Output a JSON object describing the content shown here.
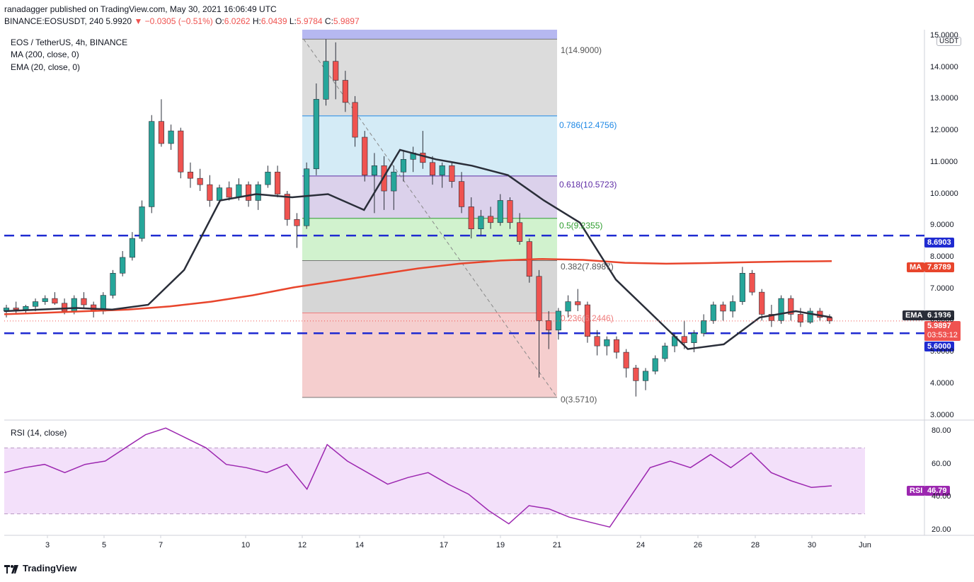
{
  "header": {
    "line1": "ranadagger published on TradingView.com, May 30, 2021 16:06:49 UTC",
    "symbol": "BINANCE:EOSUSDT, 240",
    "price": "5.9920",
    "change": "−0.0305 (−0.51%)",
    "o_label": "O:",
    "o": "6.0262",
    "h_label": "H:",
    "h": "6.0439",
    "l_label": "L:",
    "l": "5.9784",
    "c_label": "C:",
    "c": "5.9897"
  },
  "legend": {
    "pair": "EOS / TetherUS, 4h, BINANCE",
    "ma": "MA (200, close, 0)",
    "ema": "EMA (20, close, 0)",
    "rsi": "RSI (14, close)"
  },
  "currency_button": "USDT",
  "brand": "TradingView",
  "price_tags": {
    "level_high": "8.6903",
    "ma_label": "MA",
    "ma_value": "7.8789",
    "ema_label": "EMA",
    "ema_value": "6.1936",
    "last_price": "5.9897",
    "countdown": "03:53:12",
    "level_low": "5.6000",
    "rsi_label": "RSI",
    "rsi_value": "46.79"
  },
  "fib_labels": {
    "f1": "1(14.9000)",
    "f786": "0.786(12.4756)",
    "f618": "0.618(10.5723)",
    "f5": "0.5(9.2355)",
    "f382": "0.382(7.8987)",
    "f236": "0.236(6.2446)",
    "f0": "0(3.5710)"
  },
  "colors": {
    "up": "#26a69a",
    "down": "#ef5350",
    "ma": "#e8452c",
    "ema": "#2a2e39",
    "level": "#1f2bd1",
    "rsi_line": "#9c27b0",
    "rsi_band": "#f3e0fa"
  },
  "chart_data": {
    "type": "candlestick",
    "x_ticks": [
      "3",
      "5",
      "7",
      "10",
      "12",
      "14",
      "17",
      "19",
      "21",
      "24",
      "26",
      "28",
      "30",
      "Jun"
    ],
    "y_ticks": [
      "3.0000",
      "4.0000",
      "5.0000",
      "6.0000",
      "7.0000",
      "8.0000",
      "9.0000",
      "10.0000",
      "11.0000",
      "12.0000",
      "13.0000",
      "14.0000",
      "15.0000"
    ],
    "rsi_ticks": [
      "20.00",
      "40.00",
      "60.00",
      "80.00"
    ],
    "ylim": [
      2.9,
      15.2
    ],
    "rsi_lim": [
      17,
      86
    ],
    "rsi_bands": [
      30,
      70
    ],
    "horizontal_levels": [
      8.6903,
      5.6
    ],
    "fibonacci": {
      "high": 14.9,
      "low": 3.571,
      "levels": [
        1,
        0.786,
        0.618,
        0.5,
        0.382,
        0.236,
        0
      ]
    },
    "ma_points": [
      6.2,
      6.25,
      6.3,
      6.35,
      6.45,
      6.6,
      6.8,
      7.05,
      7.25,
      7.45,
      7.65,
      7.8,
      7.9,
      7.95,
      7.92,
      7.83,
      7.8,
      7.82,
      7.85,
      7.87,
      7.88
    ],
    "ema_points": [
      6.3,
      6.35,
      6.4,
      6.35,
      6.5,
      7.6,
      9.8,
      10.0,
      9.9,
      10.0,
      9.5,
      11.4,
      11.1,
      10.9,
      10.6,
      9.8,
      9.1,
      7.3,
      6.2,
      5.1,
      5.25,
      6.1,
      6.3,
      6.1
    ],
    "rsi_points": [
      55,
      58,
      60,
      55,
      60,
      62,
      70,
      78,
      82,
      76,
      70,
      60,
      58,
      55,
      60,
      45,
      72,
      62,
      55,
      48,
      52,
      55,
      48,
      42,
      32,
      24,
      35,
      33,
      28,
      25,
      22,
      40,
      58,
      62,
      58,
      66,
      58,
      67,
      55,
      50,
      46,
      47
    ],
    "candles": [
      [
        6.3,
        6.5,
        6.1,
        6.4
      ],
      [
        6.4,
        6.6,
        6.2,
        6.35
      ],
      [
        6.35,
        6.5,
        6.2,
        6.45
      ],
      [
        6.45,
        6.7,
        6.3,
        6.6
      ],
      [
        6.6,
        6.8,
        6.5,
        6.7
      ],
      [
        6.7,
        6.9,
        6.5,
        6.55
      ],
      [
        6.55,
        6.7,
        6.2,
        6.3
      ],
      [
        6.3,
        6.8,
        6.2,
        6.7
      ],
      [
        6.7,
        6.9,
        6.4,
        6.5
      ],
      [
        6.5,
        6.6,
        6.1,
        6.3
      ],
      [
        6.3,
        6.9,
        6.2,
        6.8
      ],
      [
        6.8,
        7.6,
        6.7,
        7.5
      ],
      [
        7.5,
        8.2,
        7.4,
        8.0
      ],
      [
        8.0,
        8.8,
        7.9,
        8.6
      ],
      [
        8.6,
        9.8,
        8.5,
        9.6
      ],
      [
        9.6,
        12.5,
        9.4,
        12.3
      ],
      [
        12.3,
        13.0,
        11.5,
        11.6
      ],
      [
        11.6,
        12.2,
        11.4,
        12.0
      ],
      [
        12.0,
        12.1,
        10.5,
        10.7
      ],
      [
        10.7,
        11.0,
        10.2,
        10.5
      ],
      [
        10.5,
        10.8,
        10.1,
        10.3
      ],
      [
        10.3,
        10.6,
        9.6,
        9.8
      ],
      [
        9.8,
        10.3,
        9.7,
        10.2
      ],
      [
        10.2,
        10.4,
        9.8,
        9.9
      ],
      [
        9.9,
        10.5,
        9.8,
        10.3
      ],
      [
        10.3,
        10.4,
        9.6,
        9.8
      ],
      [
        9.8,
        10.4,
        9.5,
        10.3
      ],
      [
        10.3,
        10.9,
        10.2,
        10.7
      ],
      [
        10.7,
        10.9,
        9.9,
        10.0
      ],
      [
        10.0,
        10.1,
        9.0,
        9.2
      ],
      [
        9.2,
        9.4,
        8.3,
        9.0
      ],
      [
        9.0,
        11.0,
        8.9,
        10.8
      ],
      [
        10.8,
        13.5,
        10.6,
        13.0
      ],
      [
        13.0,
        14.9,
        12.8,
        14.2
      ],
      [
        14.2,
        14.8,
        13.0,
        13.6
      ],
      [
        13.6,
        13.9,
        12.6,
        12.9
      ],
      [
        12.9,
        13.1,
        11.5,
        11.8
      ],
      [
        11.8,
        12.0,
        10.4,
        10.6
      ],
      [
        10.6,
        11.3,
        9.4,
        10.9
      ],
      [
        10.9,
        11.2,
        9.5,
        10.1
      ],
      [
        10.1,
        10.9,
        9.5,
        10.7
      ],
      [
        10.7,
        11.4,
        10.4,
        11.1
      ],
      [
        11.1,
        11.5,
        10.7,
        11.3
      ],
      [
        11.3,
        12.0,
        10.8,
        11.0
      ],
      [
        11.0,
        11.2,
        10.3,
        10.6
      ],
      [
        10.6,
        11.0,
        10.2,
        10.9
      ],
      [
        10.9,
        11.0,
        10.2,
        10.4
      ],
      [
        10.4,
        10.7,
        9.4,
        9.6
      ],
      [
        9.6,
        9.9,
        8.6,
        8.9
      ],
      [
        8.9,
        9.5,
        8.7,
        9.3
      ],
      [
        9.3,
        9.6,
        8.9,
        9.1
      ],
      [
        9.1,
        10.0,
        9.0,
        9.8
      ],
      [
        9.8,
        9.9,
        8.9,
        9.1
      ],
      [
        9.1,
        9.4,
        8.4,
        8.5
      ],
      [
        8.5,
        8.6,
        7.2,
        7.4
      ],
      [
        7.4,
        7.6,
        4.2,
        6.0
      ],
      [
        6.0,
        6.3,
        5.1,
        5.7
      ],
      [
        5.7,
        6.4,
        5.4,
        6.3
      ],
      [
        6.3,
        6.8,
        6.1,
        6.6
      ],
      [
        6.6,
        7.0,
        6.3,
        6.5
      ],
      [
        6.5,
        6.6,
        5.3,
        5.5
      ],
      [
        5.5,
        5.7,
        4.9,
        5.2
      ],
      [
        5.2,
        5.5,
        4.9,
        5.4
      ],
      [
        5.4,
        5.5,
        4.8,
        5.0
      ],
      [
        5.0,
        5.1,
        4.2,
        4.5
      ],
      [
        4.5,
        4.6,
        3.6,
        4.1
      ],
      [
        4.1,
        4.5,
        3.8,
        4.4
      ],
      [
        4.4,
        4.9,
        4.3,
        4.8
      ],
      [
        4.8,
        5.3,
        4.7,
        5.2
      ],
      [
        5.2,
        5.6,
        5.0,
        5.5
      ],
      [
        5.5,
        6.0,
        5.1,
        5.3
      ],
      [
        5.3,
        5.7,
        5.0,
        5.6
      ],
      [
        5.6,
        6.2,
        5.5,
        6.0
      ],
      [
        6.0,
        6.6,
        5.9,
        6.5
      ],
      [
        6.5,
        6.6,
        6.0,
        6.3
      ],
      [
        6.3,
        6.8,
        6.1,
        6.6
      ],
      [
        6.6,
        7.7,
        6.5,
        7.5
      ],
      [
        7.5,
        7.6,
        6.8,
        6.9
      ],
      [
        6.9,
        7.0,
        6.0,
        6.2
      ],
      [
        6.2,
        6.5,
        5.8,
        6.0
      ],
      [
        6.0,
        6.8,
        5.9,
        6.7
      ],
      [
        6.7,
        6.8,
        6.0,
        6.2
      ],
      [
        6.2,
        6.4,
        5.8,
        5.95
      ],
      [
        5.95,
        6.4,
        5.9,
        6.3
      ],
      [
        6.3,
        6.4,
        6.0,
        6.1
      ],
      [
        6.1,
        6.2,
        5.9,
        5.99
      ]
    ]
  }
}
